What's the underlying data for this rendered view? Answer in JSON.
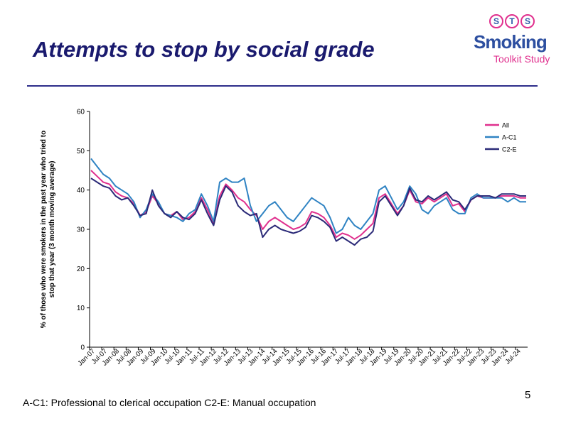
{
  "title": "Attempts to stop by social grade",
  "logo": {
    "circles": [
      "S",
      "T",
      "S"
    ],
    "main": "Smoking",
    "sub": "Toolkit Study"
  },
  "footnote": "A-C1: Professional to clerical occupation C2-E: Manual occupation",
  "page_number": "5",
  "colors": {
    "title": "#1a1a6e",
    "rule": "#2c2c8a",
    "all": "#e0308e",
    "ac1": "#2f83c3",
    "c2e": "#2b2a78"
  },
  "chart_data": {
    "type": "line",
    "title": "",
    "xlabel": "",
    "ylabel": "% of those who were smokers in the past year who tried to stop that year (3 month moving average)",
    "ylim": [
      0,
      60
    ],
    "yticks": [
      0,
      10,
      20,
      30,
      40,
      50,
      60
    ],
    "x_tick_labels": [
      "Jan-07",
      "Jul-07",
      "Jan-08",
      "Jul-08",
      "Jan-09",
      "Jul-09",
      "Jan-10",
      "Jul-10",
      "Jan-11",
      "Jul-11",
      "Jan-12",
      "Jul-12",
      "Jan-13",
      "Jul-13",
      "Jan-14",
      "Jul-14",
      "Jan-15",
      "Jul-15",
      "Jan-16",
      "Jul-16",
      "Jan-17",
      "Jul-17",
      "Jan-18",
      "Jul-18",
      "Jan-19",
      "Jul-19",
      "Jan-20",
      "Jul-20",
      "Jan-21",
      "Jul-21",
      "Jan-22",
      "Jul-22",
      "Jan-23",
      "Jul-23",
      "Jan-24",
      "Jul-24"
    ],
    "legend_position": "top-right",
    "x_note": "series values are 3-monthly points from Jan-07 to Oct-24",
    "series": [
      {
        "name": "All",
        "values": [
          45,
          43.5,
          42,
          41.5,
          39.5,
          38.5,
          38,
          36.5,
          33.5,
          34.5,
          38.5,
          36.5,
          34,
          33.5,
          34.5,
          32.5,
          33,
          34.5,
          38,
          35,
          31.5,
          38.5,
          41.5,
          40,
          38,
          37,
          35,
          33.5,
          30,
          32,
          33,
          32,
          31,
          30,
          30.5,
          31.5,
          34.5,
          34,
          33,
          31,
          28,
          29,
          28.5,
          27.5,
          28.5,
          30,
          31.5,
          38,
          39,
          36.5,
          34,
          36,
          40,
          37,
          36.5,
          38,
          37,
          38,
          39,
          36,
          36.5,
          34.5,
          37.5,
          38.5,
          38,
          38,
          38,
          38.5,
          38.5,
          38.5,
          38,
          38
        ]
      },
      {
        "name": "A-C1",
        "values": [
          48,
          46,
          44,
          43,
          41,
          40,
          39,
          37,
          33,
          35,
          39,
          37,
          34,
          33.5,
          33,
          32,
          34,
          35,
          39,
          36,
          32,
          42,
          43,
          42,
          42,
          43,
          36,
          32,
          34,
          36,
          37,
          35,
          33,
          32,
          34,
          36,
          38,
          37,
          36,
          33,
          29,
          30,
          33,
          31,
          30,
          32,
          34,
          40,
          41,
          38,
          35,
          37,
          41,
          39,
          35,
          34,
          36,
          37,
          38,
          35,
          34,
          34,
          38,
          39,
          38,
          38,
          38,
          38,
          37,
          38,
          37,
          37
        ]
      },
      {
        "name": "C2-E",
        "values": [
          43,
          42,
          41,
          40.5,
          38.5,
          37.5,
          38,
          36,
          33.5,
          34,
          40,
          36,
          34,
          33,
          34.5,
          33,
          32.5,
          34,
          37.5,
          34,
          31,
          37.5,
          41,
          39.5,
          36,
          34.5,
          33.5,
          34,
          28,
          30,
          31,
          30,
          29.5,
          29,
          29.5,
          30.5,
          33.5,
          33,
          32,
          30.5,
          27,
          28,
          27,
          26,
          27.5,
          28,
          29.5,
          37,
          38.5,
          36,
          33.5,
          36,
          40.5,
          37.5,
          37,
          38.5,
          37.5,
          38.5,
          39.5,
          37.5,
          37,
          35,
          37.5,
          38.5,
          38.5,
          38.5,
          38,
          39,
          39,
          39,
          38.5,
          38.5
        ]
      }
    ]
  }
}
